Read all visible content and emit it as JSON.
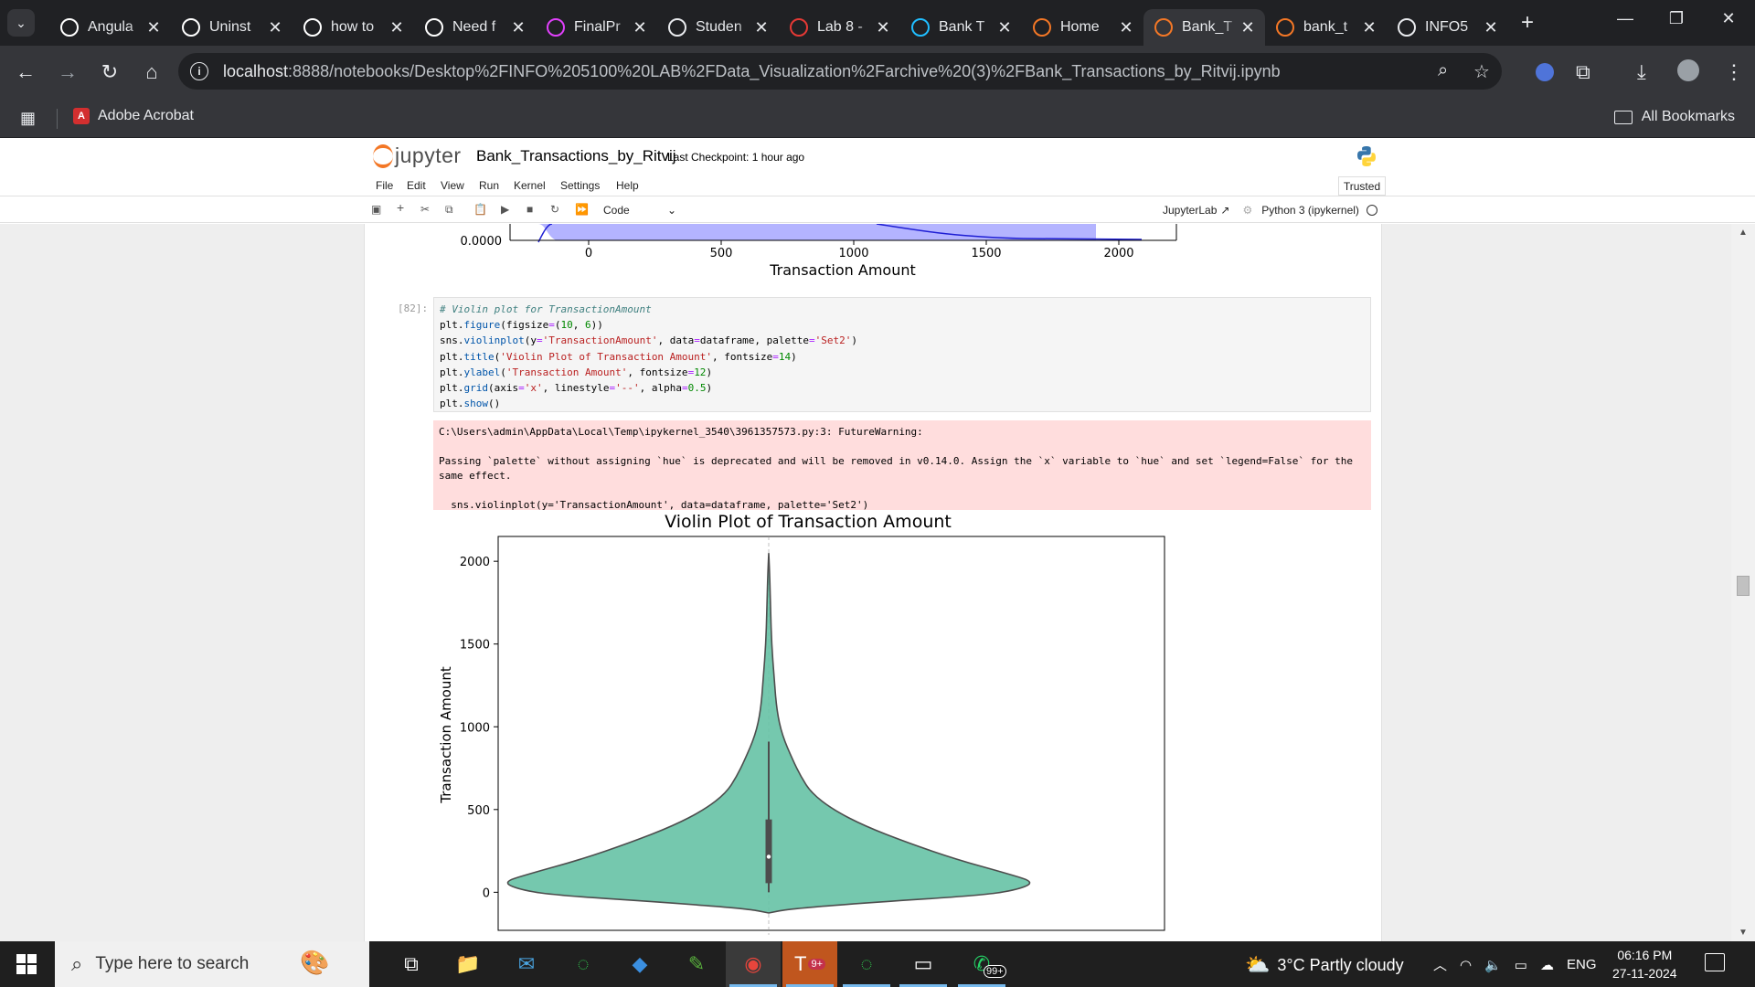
{
  "browser": {
    "tabs": [
      {
        "title": "Angula",
        "icon": "chatgpt-icon",
        "color": "#ffffff"
      },
      {
        "title": "Uninst",
        "icon": "chatgpt-icon",
        "color": "#ffffff"
      },
      {
        "title": "how to",
        "icon": "google-icon",
        "color": "#ffffff"
      },
      {
        "title": "Need f",
        "icon": "chatgpt-icon",
        "color": "#ffffff"
      },
      {
        "title": "FinalPr",
        "icon": "figma-like-icon",
        "color": "#e040fb"
      },
      {
        "title": "Studen",
        "icon": "slash-icon",
        "color": "#e8eaed"
      },
      {
        "title": "Lab 8 -",
        "icon": "gear-red-icon",
        "color": "#e53935"
      },
      {
        "title": "Bank T",
        "icon": "k-icon",
        "color": "#20beff"
      },
      {
        "title": "Home",
        "icon": "jupyter-icon",
        "color": "#f37726"
      },
      {
        "title": "Bank_T",
        "icon": "notebook-icon",
        "color": "#f37726"
      },
      {
        "title": "bank_t",
        "icon": "file-icon",
        "color": "#f37726"
      },
      {
        "title": "INFO5",
        "icon": "github-icon",
        "color": "#e8eaed"
      }
    ],
    "active_tab": 9,
    "url_host": "localhost",
    "url_rest": ":8888/notebooks/Desktop%2FINFO%205100%20LAB%2FData_Visualization%2Farchive%20(3)%2FBank_Transactions_by_Ritvij.ipynb",
    "bookmarks": {
      "acrobat": "Adobe Acrobat",
      "all": "All Bookmarks"
    }
  },
  "jupyter": {
    "logo_text": "jupyter",
    "notebook_title": "Bank_Transactions_by_Ritvij",
    "checkpoint": "Last Checkpoint: 1 hour ago",
    "menu": [
      "File",
      "Edit",
      "View",
      "Run",
      "Kernel",
      "Settings",
      "Help"
    ],
    "trusted": "Trusted",
    "cell_type": "Code",
    "jupyterlab_link": "JupyterLab",
    "kernel": "Python 3 (ipykernel)"
  },
  "previous_plot": {
    "y_tick": "0.0000",
    "x_ticks": [
      "0",
      "500",
      "1000",
      "1500",
      "2000"
    ],
    "xlabel": "Transaction Amount"
  },
  "cell": {
    "prompt": "[82]:",
    "code": [
      "# Violin plot for TransactionAmount",
      "plt.figure(figsize=(10, 6))",
      "sns.violinplot(y='TransactionAmount', data=dataframe, palette='Set2')",
      "plt.title('Violin Plot of Transaction Amount', fontsize=14)",
      "plt.ylabel('Transaction Amount', fontsize=12)",
      "plt.grid(axis='x', linestyle='--', alpha=0.5)",
      "plt.show()"
    ],
    "warning": [
      "C:\\Users\\admin\\AppData\\Local\\Temp\\ipykernel_3540\\3961357573.py:3: FutureWarning:",
      "",
      "Passing `palette` without assigning `hue` is deprecated and will be removed in v0.14.0. Assign the `x` variable to `hue` and set `legend=False` for the same effect.",
      "",
      "  sns.violinplot(y='TransactionAmount', data=dataframe, palette='Set2')"
    ]
  },
  "chart_data": {
    "type": "violin",
    "title": "Violin Plot of Transaction Amount",
    "ylabel": "Transaction Amount",
    "xlabel": "",
    "ylim": [
      -230,
      2150
    ],
    "yticks": [
      0,
      500,
      1000,
      1500,
      2000
    ],
    "fill_color": "#66c2a5",
    "density_profile": [
      {
        "y": -125,
        "w": 0.0
      },
      {
        "y": -100,
        "w": 0.08
      },
      {
        "y": -60,
        "w": 0.4
      },
      {
        "y": -20,
        "w": 0.78
      },
      {
        "y": 10,
        "w": 0.92
      },
      {
        "y": 60,
        "w": 1.0
      },
      {
        "y": 110,
        "w": 0.9
      },
      {
        "y": 200,
        "w": 0.7
      },
      {
        "y": 300,
        "w": 0.52
      },
      {
        "y": 400,
        "w": 0.36
      },
      {
        "y": 500,
        "w": 0.24
      },
      {
        "y": 600,
        "w": 0.16
      },
      {
        "y": 700,
        "w": 0.12
      },
      {
        "y": 800,
        "w": 0.09
      },
      {
        "y": 950,
        "w": 0.05
      },
      {
        "y": 1100,
        "w": 0.03
      },
      {
        "y": 1300,
        "w": 0.02
      },
      {
        "y": 1500,
        "w": 0.011
      },
      {
        "y": 1700,
        "w": 0.007
      },
      {
        "y": 1900,
        "w": 0.004
      },
      {
        "y": 2050,
        "w": 0.0
      }
    ],
    "box": {
      "whisker_low": 0,
      "q1": 55,
      "median": 215,
      "q3": 440,
      "whisker_high": 910
    }
  },
  "taskbar": {
    "search_placeholder": "Type here to search",
    "weather": "3°C  Partly cloudy",
    "lang": "ENG",
    "time": "06:16 PM",
    "date": "27-11-2024",
    "whatsapp_badge": "99+",
    "teams_badge": "9+"
  }
}
